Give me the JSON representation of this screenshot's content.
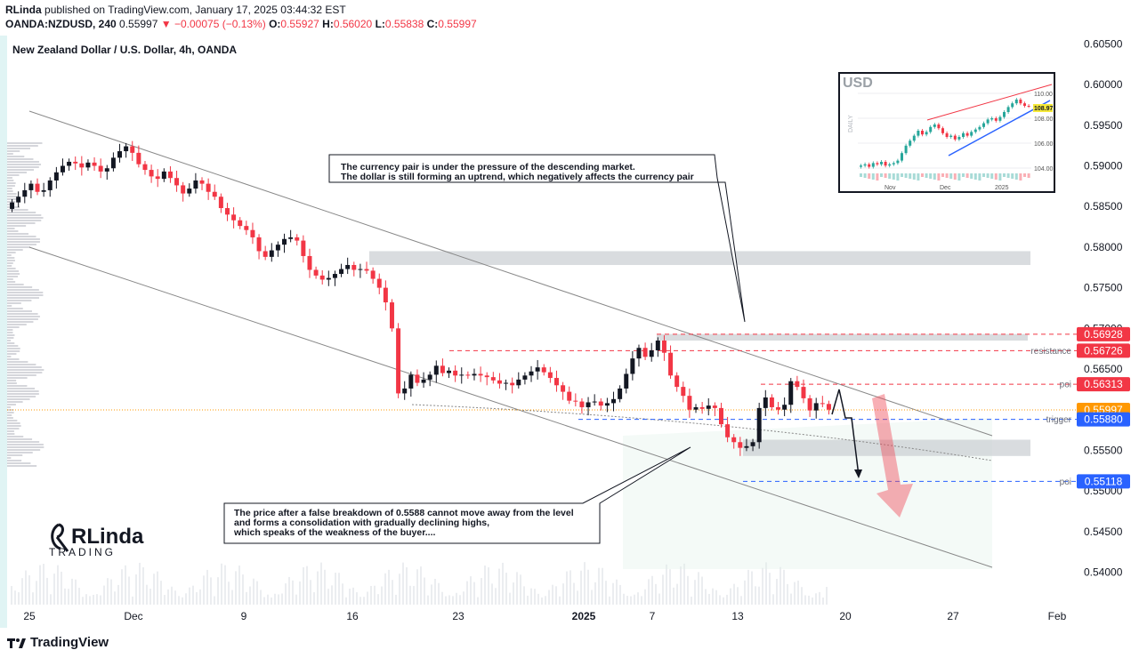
{
  "header": {
    "publisher": "RLinda",
    "published_text": "published on TradingView.com, January 17, 2025 03:44:32 EST",
    "symbol": "OANDA:NZDUSD, 240",
    "last": "0.55997",
    "change": "▼ −0.00075 (−0.13%)",
    "o_label": "O:",
    "o_value": "0.55927",
    "h_label": "H:",
    "h_value": "0.56020",
    "l_label": "L:",
    "l_value": "0.55838",
    "c_label": "C:",
    "c_value": "0.55997"
  },
  "legend_title": "New Zealand Dollar / U.S. Dollar, 4h, OANDA",
  "footer": {
    "brand": "TradingView"
  },
  "logo": {
    "top": "RLinda",
    "bottom": "TRADING"
  },
  "notes": {
    "top": [
      "The currency pair is under the pressure of the descending market.",
      "The dollar is still forming an uptrend, which negatively affects the currency pair"
    ],
    "bottom": [
      "The price after a false breakdown of 0.5588 cannot move away from the level",
      "and forms a consolidation with gradually declining highs,",
      "which speaks of the weakness of the buyer...."
    ]
  },
  "inset": {
    "title": "USD",
    "side_label": "DAILY",
    "y_ticks": [
      "110.00",
      "108.00",
      "106.00",
      "104.00"
    ],
    "x_ticks": [
      "Nov",
      "Dec",
      "2025"
    ],
    "price_tag": "108.97"
  },
  "chart_data": {
    "type": "candlestick",
    "title": "New Zealand Dollar / U.S. Dollar, 4h, OANDA",
    "ylim": [
      0.5375,
      0.6065
    ],
    "y_ticks": [
      "0.60500",
      "0.60000",
      "0.59500",
      "0.59000",
      "0.58500",
      "0.58000",
      "0.57500",
      "0.57000",
      "0.56500",
      "0.56000",
      "0.55500",
      "0.55000",
      "0.54500",
      "0.54000"
    ],
    "x_ticks": [
      "25",
      "Dec",
      "9",
      "16",
      "23",
      "2025",
      "7",
      "13",
      "20",
      "27",
      "Feb"
    ],
    "x_bold": "2025",
    "closes": [
      0.5855,
      0.5862,
      0.587,
      0.5878,
      0.5868,
      0.587,
      0.5882,
      0.5892,
      0.59,
      0.5905,
      0.5903,
      0.5898,
      0.5904,
      0.59,
      0.5893,
      0.5897,
      0.591,
      0.5918,
      0.5924,
      0.5916,
      0.5902,
      0.5895,
      0.5887,
      0.5884,
      0.5893,
      0.5885,
      0.5876,
      0.5866,
      0.5872,
      0.5882,
      0.5878,
      0.5868,
      0.5862,
      0.5848,
      0.584,
      0.5833,
      0.5826,
      0.5821,
      0.5812,
      0.5795,
      0.5788,
      0.5796,
      0.5803,
      0.581,
      0.5812,
      0.5808,
      0.5789,
      0.5772,
      0.5765,
      0.576,
      0.5762,
      0.5767,
      0.5773,
      0.5778,
      0.5772,
      0.5773,
      0.5771,
      0.5761,
      0.575,
      0.5732,
      0.57,
      0.562,
      0.5626,
      0.5643,
      0.5633,
      0.5637,
      0.5643,
      0.5654,
      0.5645,
      0.5648,
      0.5642,
      0.5643,
      0.5642,
      0.5644,
      0.5642,
      0.564,
      0.5636,
      0.5632,
      0.5633,
      0.563,
      0.5637,
      0.5642,
      0.5647,
      0.5652,
      0.5646,
      0.5639,
      0.563,
      0.5622,
      0.5611,
      0.561,
      0.5603,
      0.5609,
      0.561,
      0.5605,
      0.5608,
      0.5613,
      0.5626,
      0.5644,
      0.5663,
      0.5676,
      0.5665,
      0.5673,
      0.5685,
      0.567,
      0.5642,
      0.5628,
      0.5617,
      0.56,
      0.5603,
      0.5601,
      0.5605,
      0.5602,
      0.5582,
      0.5566,
      0.556,
      0.5553,
      0.5555,
      0.556,
      0.5602,
      0.5615,
      0.5603,
      0.56,
      0.5606,
      0.5635,
      0.5628,
      0.5614,
      0.5599,
      0.5608,
      0.5607,
      0.56
    ],
    "price_lines": [
      {
        "label": "",
        "value": 0.56928,
        "tag": "0.56928",
        "color": "#f23645",
        "style": "dashed"
      },
      {
        "label": "resistance",
        "value": 0.56726,
        "tag": "0.56726",
        "color": "#f23645",
        "style": "dashed"
      },
      {
        "label": "poi",
        "value": 0.56313,
        "tag": "0.56313",
        "color": "#f23645",
        "style": "dashed"
      },
      {
        "label": "",
        "value": 0.55997,
        "tag": "0.55997",
        "color": "#ff9800",
        "style": "dotted"
      },
      {
        "label": "trigger",
        "value": 0.5588,
        "tag": "0.55880",
        "color": "#2962ff",
        "style": "dashed"
      },
      {
        "label": "poi",
        "value": 0.55118,
        "tag": "0.55118",
        "color": "#2962ff",
        "style": "dashed"
      }
    ],
    "zones": [
      {
        "y_top": 0.5795,
        "y_bot": 0.5778
      },
      {
        "y_top": 0.5693,
        "y_bot": 0.5685
      },
      {
        "y_top": 0.5563,
        "y_bot": 0.5543
      }
    ]
  }
}
